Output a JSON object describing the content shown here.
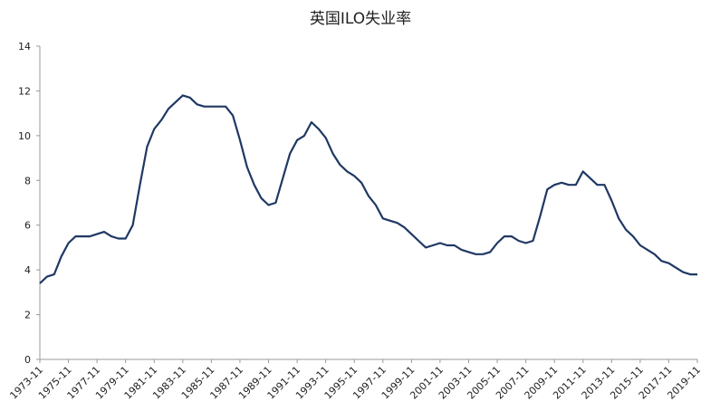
{
  "chart_data": {
    "type": "line",
    "title": "英国ILO失业率",
    "x": [
      "1973-11",
      "1974-05",
      "1974-11",
      "1975-05",
      "1975-11",
      "1976-05",
      "1976-11",
      "1977-05",
      "1977-11",
      "1978-05",
      "1978-11",
      "1979-05",
      "1979-11",
      "1980-05",
      "1980-11",
      "1981-05",
      "1981-11",
      "1982-05",
      "1982-11",
      "1983-05",
      "1983-11",
      "1984-05",
      "1984-11",
      "1985-05",
      "1985-11",
      "1986-05",
      "1986-11",
      "1987-05",
      "1987-11",
      "1988-05",
      "1988-11",
      "1989-05",
      "1989-11",
      "1990-05",
      "1990-11",
      "1991-05",
      "1991-11",
      "1992-05",
      "1992-11",
      "1993-05",
      "1993-11",
      "1994-05",
      "1994-11",
      "1995-05",
      "1995-11",
      "1996-05",
      "1996-11",
      "1997-05",
      "1997-11",
      "1998-05",
      "1998-11",
      "1999-05",
      "1999-11",
      "2000-05",
      "2000-11",
      "2001-05",
      "2001-11",
      "2002-05",
      "2002-11",
      "2003-05",
      "2003-11",
      "2004-05",
      "2004-11",
      "2005-05",
      "2005-11",
      "2006-05",
      "2006-11",
      "2007-05",
      "2007-11",
      "2008-05",
      "2008-11",
      "2009-05",
      "2009-11",
      "2010-05",
      "2010-11",
      "2011-05",
      "2011-11",
      "2012-05",
      "2012-11",
      "2013-05",
      "2013-11",
      "2014-05",
      "2014-11",
      "2015-05",
      "2015-11",
      "2016-05",
      "2016-11",
      "2017-05",
      "2017-11",
      "2018-05",
      "2018-11",
      "2019-05",
      "2019-11"
    ],
    "series": [
      {
        "name": "英国ILO失业率",
        "color": "#1f3864",
        "values": [
          3.4,
          3.7,
          3.8,
          4.6,
          5.2,
          5.5,
          5.5,
          5.5,
          5.6,
          5.7,
          5.5,
          5.4,
          5.4,
          6.0,
          7.8,
          9.5,
          10.3,
          10.7,
          11.2,
          11.5,
          11.8,
          11.7,
          11.4,
          11.3,
          11.3,
          11.3,
          11.3,
          10.9,
          9.8,
          8.6,
          7.8,
          7.2,
          6.9,
          7.0,
          8.1,
          9.2,
          9.8,
          10.0,
          10.6,
          10.3,
          9.9,
          9.2,
          8.7,
          8.4,
          8.2,
          7.9,
          7.3,
          6.9,
          6.3,
          6.2,
          6.1,
          5.9,
          5.6,
          5.3,
          5.0,
          5.1,
          5.2,
          5.1,
          5.1,
          4.9,
          4.8,
          4.7,
          4.7,
          4.8,
          5.2,
          5.5,
          5.5,
          5.3,
          5.2,
          5.3,
          6.4,
          7.6,
          7.8,
          7.9,
          7.8,
          7.8,
          8.4,
          8.1,
          7.8,
          7.8,
          7.1,
          6.3,
          5.8,
          5.5,
          5.1,
          4.9,
          4.7,
          4.4,
          4.3,
          4.1,
          3.9,
          3.8,
          3.8
        ]
      }
    ],
    "xlim": [
      "1973-11",
      "2019-11"
    ],
    "xticks": [
      "1973-11",
      "1975-11",
      "1977-11",
      "1979-11",
      "1981-11",
      "1983-11",
      "1985-11",
      "1987-11",
      "1989-11",
      "1991-11",
      "1993-11",
      "1995-11",
      "1997-11",
      "1999-11",
      "2001-11",
      "2003-11",
      "2005-11",
      "2007-11",
      "2009-11",
      "2011-11",
      "2013-11",
      "2015-11",
      "2017-11",
      "2019-11"
    ],
    "ylim": [
      0,
      14
    ],
    "yticks": [
      0,
      2,
      4,
      6,
      8,
      10,
      12,
      14
    ],
    "grid": false
  }
}
